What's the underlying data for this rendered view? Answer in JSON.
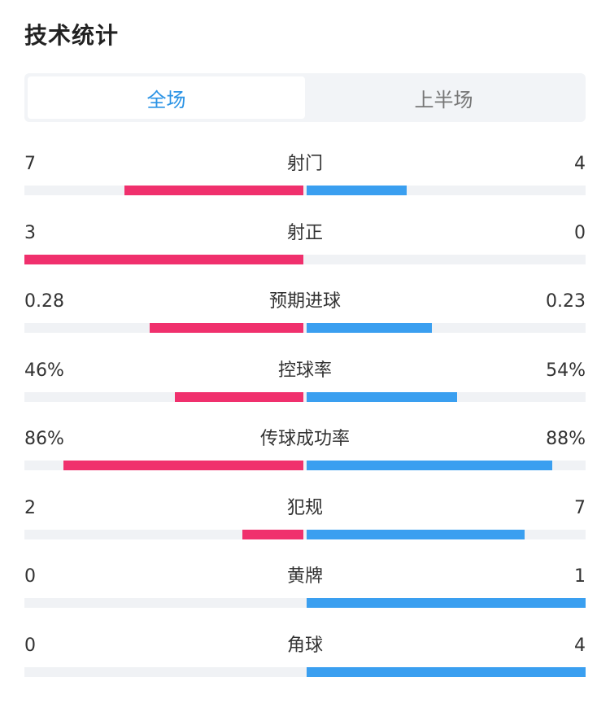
{
  "title": "技术统计",
  "tabs": [
    {
      "label": "全场",
      "active": true
    },
    {
      "label": "上半场",
      "active": false
    }
  ],
  "colors": {
    "home": "#f0306d",
    "away": "#3a9ff0",
    "active_tab": "#2a93e5"
  },
  "stats": [
    {
      "label": "射门",
      "left": "7",
      "right": "4",
      "left_frac": 0.64,
      "right_frac": 0.36
    },
    {
      "label": "射正",
      "left": "3",
      "right": "0",
      "left_frac": 1.0,
      "right_frac": 0.0
    },
    {
      "label": "预期进球",
      "left": "0.28",
      "right": "0.23",
      "left_frac": 0.55,
      "right_frac": 0.45
    },
    {
      "label": "控球率",
      "left": "46%",
      "right": "54%",
      "left_frac": 0.46,
      "right_frac": 0.54
    },
    {
      "label": "传球成功率",
      "left": "86%",
      "right": "88%",
      "left_frac": 0.86,
      "right_frac": 0.88
    },
    {
      "label": "犯规",
      "left": "2",
      "right": "7",
      "left_frac": 0.22,
      "right_frac": 0.78
    },
    {
      "label": "黄牌",
      "left": "0",
      "right": "1",
      "left_frac": 0.0,
      "right_frac": 1.0
    },
    {
      "label": "角球",
      "left": "0",
      "right": "4",
      "left_frac": 0.0,
      "right_frac": 1.0
    }
  ]
}
